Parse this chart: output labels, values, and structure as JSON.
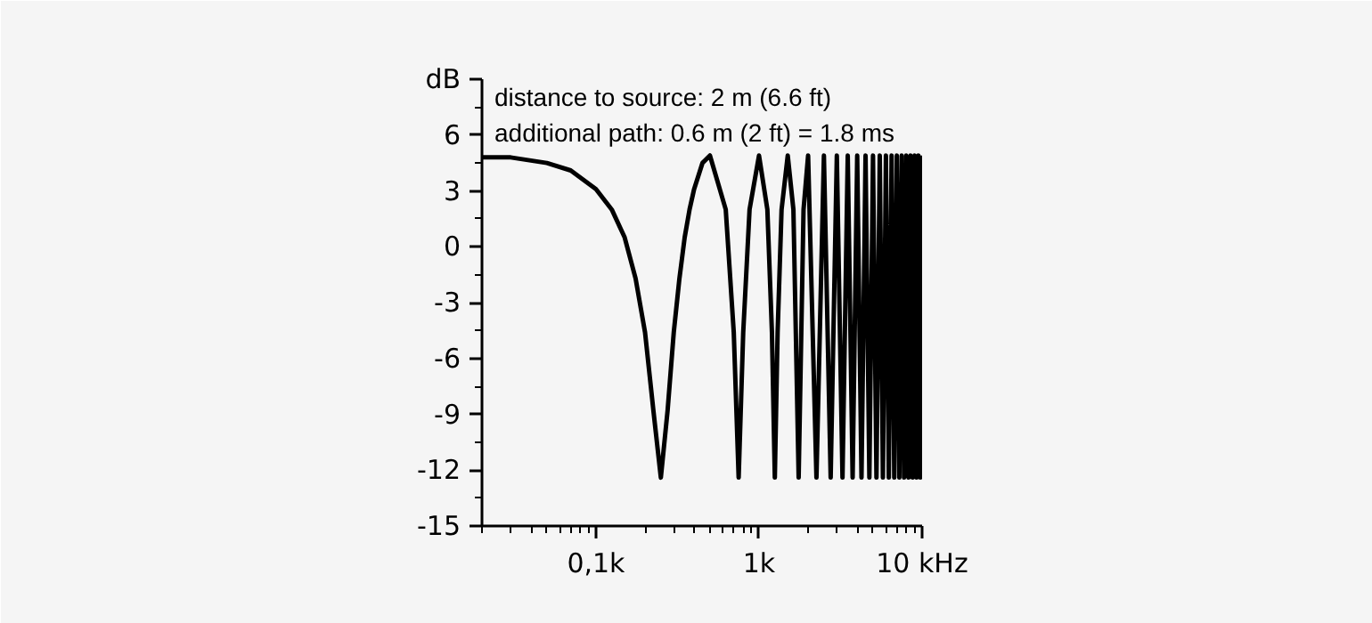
{
  "chart_data": {
    "type": "line",
    "log": "x",
    "grid": false,
    "marker": "none",
    "line_style": "solid",
    "annotations": [
      "distance to source: 2 m (6.6 ft)",
      "additional path: 0.6 m (2 ft) = 1.8 ms"
    ],
    "xlim": [
      0.02,
      10
    ],
    "xticks": [
      {
        "value": 0.1,
        "label": "0,1k"
      },
      {
        "value": 1,
        "label": "1k"
      },
      {
        "value": 10,
        "label": "10 kHz"
      }
    ],
    "ylim": [
      -15,
      9
    ],
    "yticks": [
      -15,
      -12,
      -9,
      -6,
      -3,
      0,
      3,
      6,
      {
        "value": 9,
        "label": "dB"
      }
    ],
    "series": [
      {
        "color": "#000000",
        "x": [
          0.02,
          0.03,
          0.05,
          0.07,
          0.1,
          0.125,
          0.15,
          0.175,
          0.2,
          0.225,
          0.25,
          0.275,
          0.3,
          0.325,
          0.35,
          0.375,
          0.4,
          0.45,
          0.5,
          0.625,
          0.7,
          0.75,
          0.8,
          0.875,
          1,
          1.125,
          1.2,
          1.25,
          1.3,
          1.375,
          1.5,
          1.625,
          1.75,
          1.875,
          2,
          2.25,
          2.5,
          2.75,
          3,
          3.25,
          3.5,
          3.75,
          4,
          4.25,
          4.5,
          4.75,
          5,
          5.25,
          5.5,
          5.75,
          6,
          6.25,
          6.5,
          6.75,
          7,
          7.25,
          7.5,
          7.75,
          8,
          8.25,
          8.5,
          8.75,
          9,
          9.25,
          9.5,
          9.75,
          10
        ],
        "values": [
          4.8,
          4.8,
          4.5,
          4.1,
          3.1,
          2.0,
          0.5,
          -1.7,
          -4.6,
          -8.8,
          -12.4,
          -8.8,
          -4.6,
          -1.7,
          0.5,
          2.0,
          3.1,
          4.5,
          4.9,
          2.0,
          -4.6,
          -12.4,
          -4.6,
          2.0,
          4.9,
          2.0,
          -4.6,
          -12.4,
          -4.6,
          2.0,
          4.9,
          2.0,
          -12.4,
          2.0,
          4.9,
          -12.4,
          4.9,
          -12.4,
          4.9,
          -12.4,
          4.9,
          -12.4,
          4.9,
          -12.4,
          4.9,
          -12.4,
          4.9,
          -12.4,
          4.9,
          -12.4,
          4.9,
          -12.4,
          4.9,
          -12.4,
          4.9,
          -12.4,
          4.9,
          -12.4,
          4.9,
          -12.4,
          4.9,
          -12.4,
          4.9,
          -12.4,
          4.9,
          -12.4,
          4.9
        ]
      }
    ]
  }
}
